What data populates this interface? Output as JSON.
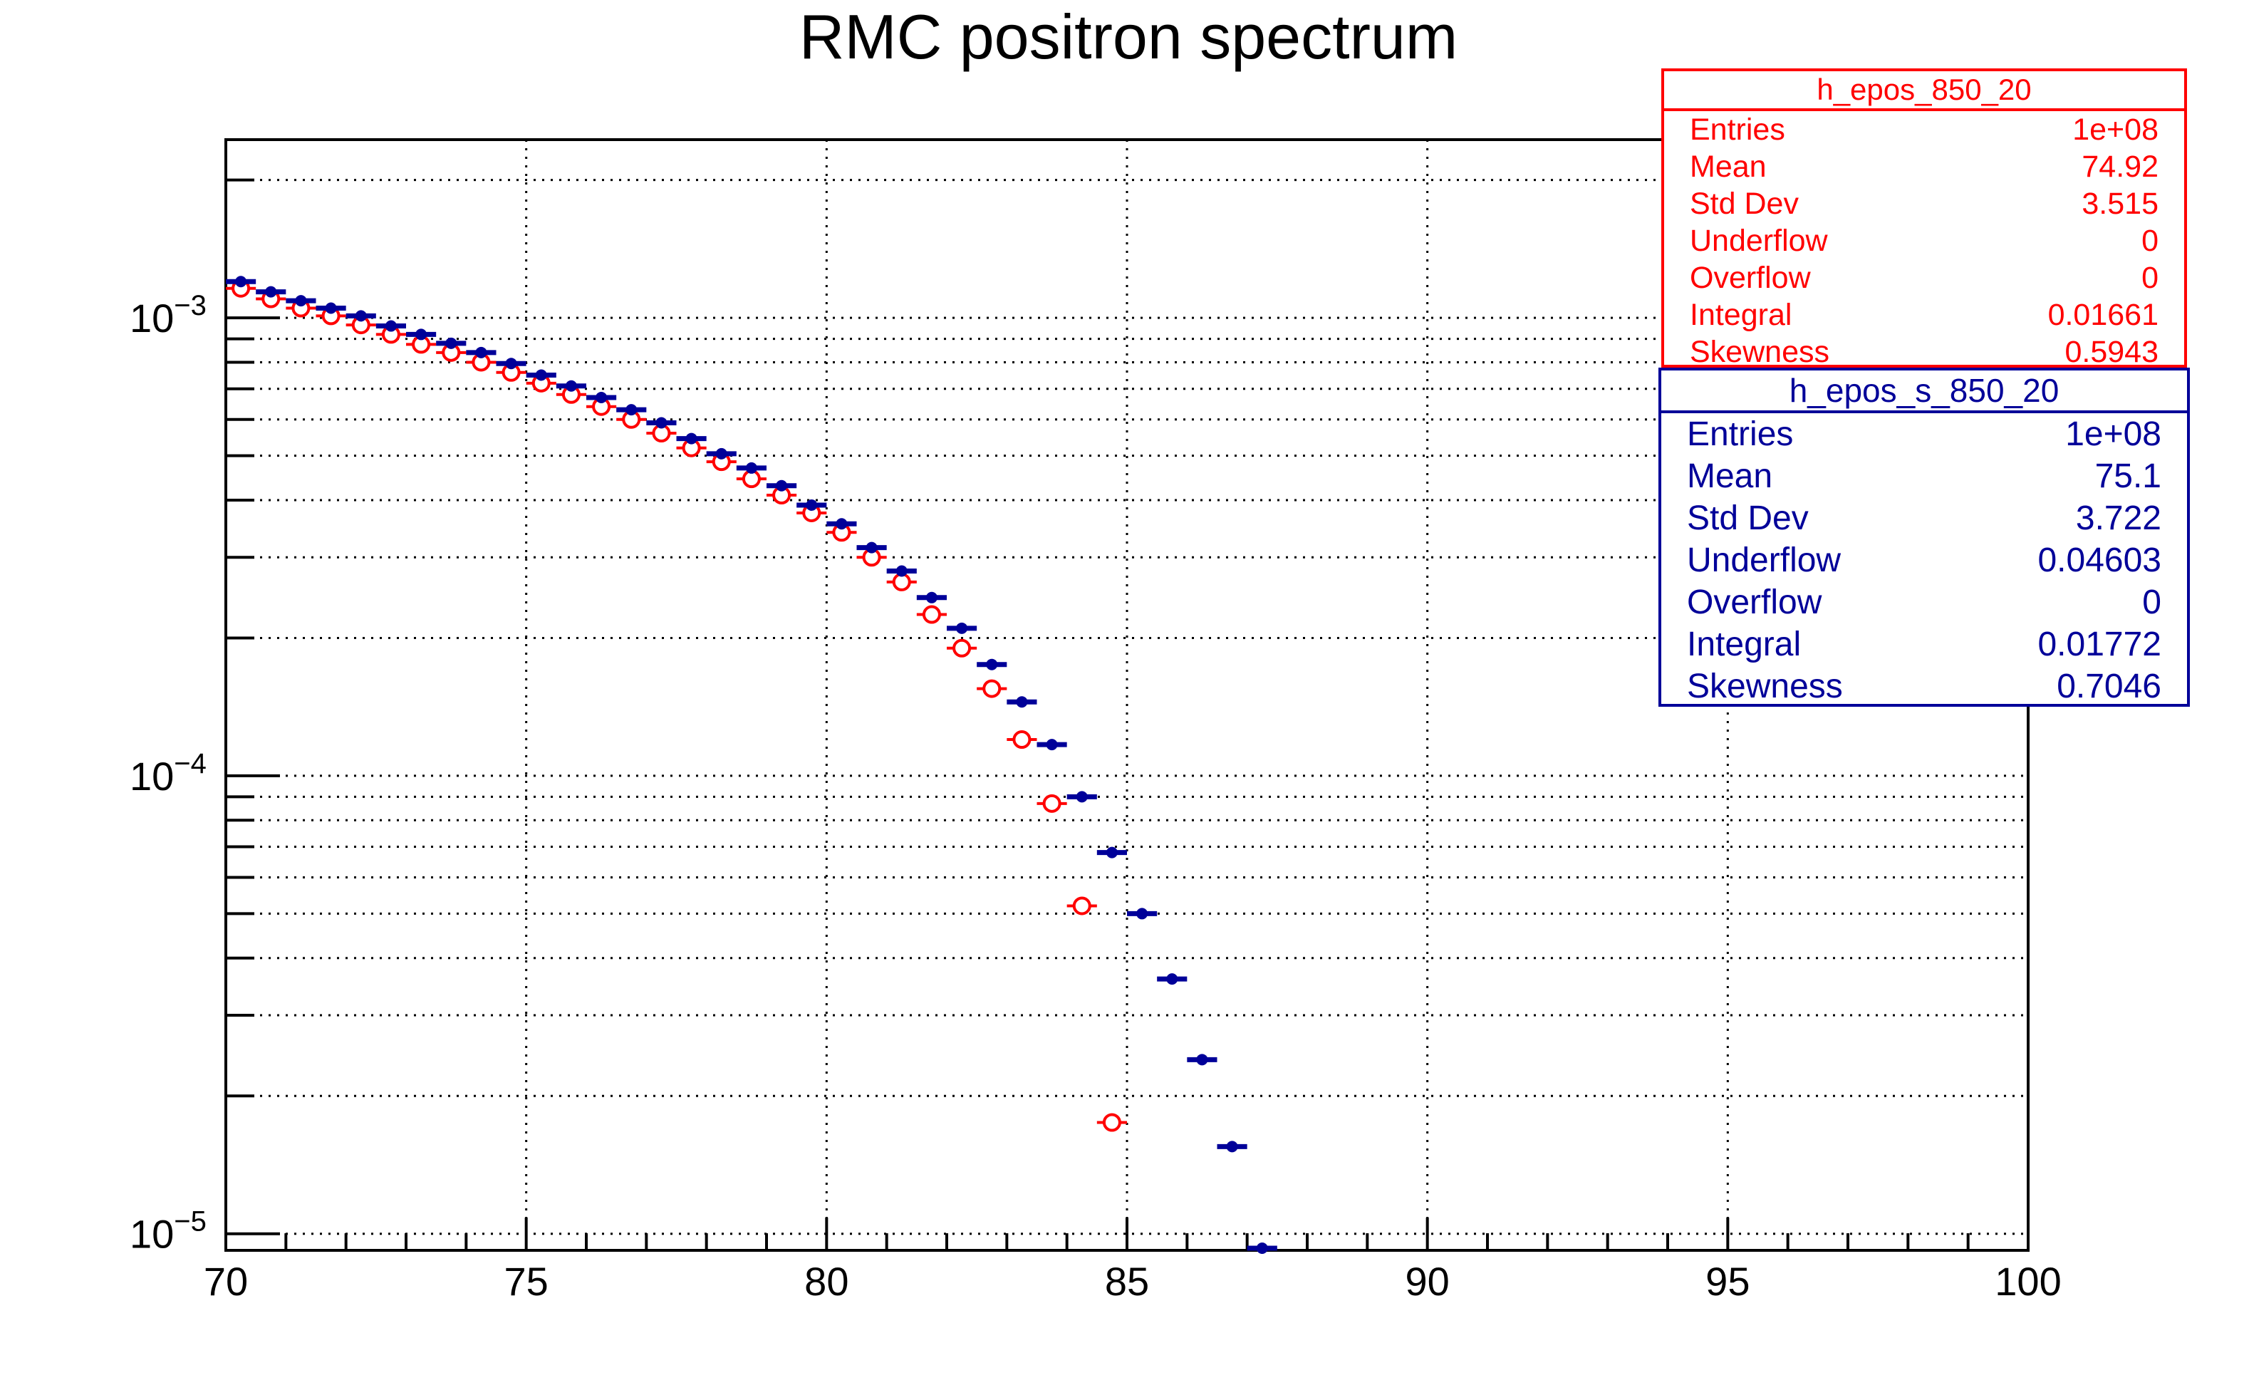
{
  "chart_data": {
    "type": "scatter",
    "title": "RMC positron spectrum",
    "xlabel": "",
    "ylabel": "",
    "xlim": [
      70,
      100
    ],
    "ylim": [
      9.2e-06,
      0.00245
    ],
    "yscale": "log",
    "grid": true,
    "x_ticks": [
      "70",
      "75",
      "80",
      "85",
      "90",
      "95",
      "100"
    ],
    "y_ticks": [
      {
        "base": "10",
        "exp": "−3"
      },
      {
        "base": "10",
        "exp": "−4"
      },
      {
        "base": "10",
        "exp": "−5"
      }
    ],
    "bin_width": 0.5,
    "series": [
      {
        "name": "h_epos_850_20",
        "color": "#ff0000",
        "marker": "open-circle",
        "x": [
          70.25,
          70.75,
          71.25,
          71.75,
          72.25,
          72.75,
          73.25,
          73.75,
          74.25,
          74.75,
          75.25,
          75.75,
          76.25,
          76.75,
          77.25,
          77.75,
          78.25,
          78.75,
          79.25,
          79.75,
          80.25,
          80.75,
          81.25,
          81.75,
          82.25,
          82.75,
          83.25,
          83.75,
          84.25,
          84.75
        ],
        "y": [
          0.00116,
          0.0011,
          0.00105,
          0.00101,
          0.000965,
          0.00092,
          0.000875,
          0.00084,
          0.0008,
          0.00076,
          0.00072,
          0.00068,
          0.00064,
          0.0006,
          0.00056,
          0.00052,
          0.000485,
          0.000445,
          0.00041,
          0.000375,
          0.00034,
          0.0003,
          0.000265,
          0.000225,
          0.00019,
          0.000155,
          0.00012,
          8.7e-05,
          5.2e-05,
          1.75e-05
        ]
      },
      {
        "name": "h_epos_s_850_20",
        "color": "#000099",
        "marker": "filled-circle",
        "x": [
          70.25,
          70.75,
          71.25,
          71.75,
          72.25,
          72.75,
          73.25,
          73.75,
          74.25,
          74.75,
          75.25,
          75.75,
          76.25,
          76.75,
          77.25,
          77.75,
          78.25,
          78.75,
          79.25,
          79.75,
          80.25,
          80.75,
          81.25,
          81.75,
          82.25,
          82.75,
          83.25,
          83.75,
          84.25,
          84.75,
          85.25,
          85.75,
          86.25,
          86.75,
          87.25
        ],
        "y": [
          0.0012,
          0.00114,
          0.00109,
          0.00105,
          0.00101,
          0.00096,
          0.00092,
          0.00088,
          0.00084,
          0.000795,
          0.00075,
          0.00071,
          0.00067,
          0.00063,
          0.00059,
          0.000545,
          0.000505,
          0.00047,
          0.00043,
          0.00039,
          0.000355,
          0.000315,
          0.00028,
          0.000245,
          0.00021,
          0.000175,
          0.000145,
          0.000117,
          9e-05,
          6.8e-05,
          5e-05,
          3.6e-05,
          2.4e-05,
          1.55e-05,
          9.3e-06
        ]
      }
    ]
  },
  "stats": [
    {
      "title": "h_epos_850_20",
      "color": "#ff0000",
      "rows": [
        {
          "label": "Entries",
          "value": "1e+08"
        },
        {
          "label": "Mean",
          "value": "74.92"
        },
        {
          "label": "Std Dev",
          "value": "3.515"
        },
        {
          "label": "Underflow",
          "value": "0"
        },
        {
          "label": "Overflow",
          "value": "0"
        },
        {
          "label": "Integral",
          "value": "0.01661"
        },
        {
          "label": "Skewness",
          "value": "0.5943"
        }
      ]
    },
    {
      "title": "h_epos_s_850_20",
      "color": "#000099",
      "rows": [
        {
          "label": "Entries",
          "value": "1e+08"
        },
        {
          "label": "Mean",
          "value": "75.1"
        },
        {
          "label": "Std Dev",
          "value": "3.722"
        },
        {
          "label": "Underflow",
          "value": "0.04603"
        },
        {
          "label": "Overflow",
          "value": "0"
        },
        {
          "label": "Integral",
          "value": "0.01772"
        },
        {
          "label": "Skewness",
          "value": "0.7046"
        }
      ]
    }
  ]
}
